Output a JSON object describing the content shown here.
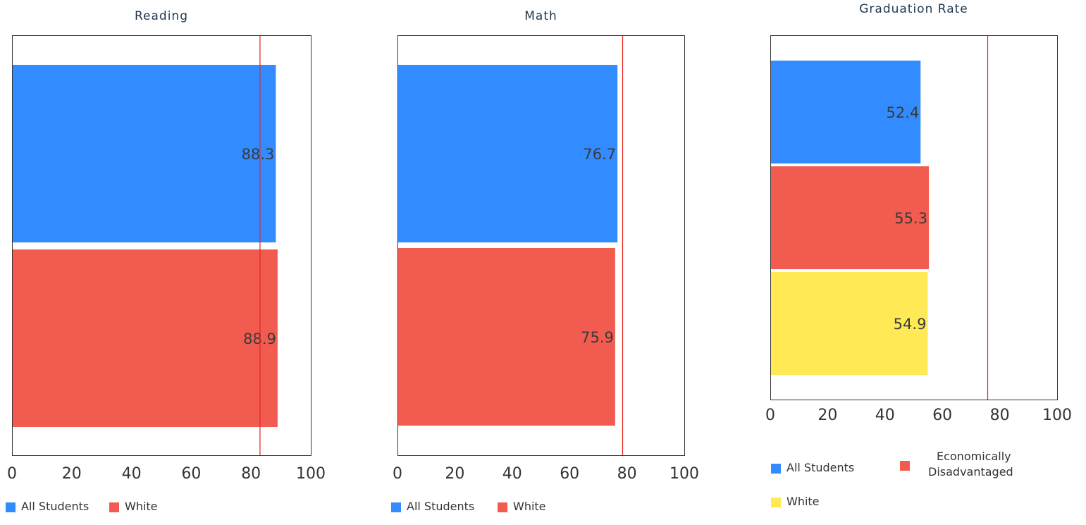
{
  "chart_data": [
    {
      "type": "bar",
      "orientation": "horizontal",
      "title": "Reading",
      "xlim": [
        0,
        100
      ],
      "xticks": [
        "0",
        "20",
        "40",
        "60",
        "80",
        "100"
      ],
      "reference_line": 83,
      "series": [
        {
          "name": "All Students",
          "value": 88.3,
          "label": "88.3",
          "color": "#338cff"
        },
        {
          "name": "White",
          "value": 88.9,
          "label": "88.9",
          "color": "#f25c50"
        }
      ],
      "legend": "bottom"
    },
    {
      "type": "bar",
      "orientation": "horizontal",
      "title": "Math",
      "xlim": [
        0,
        100
      ],
      "xticks": [
        "0",
        "20",
        "40",
        "60",
        "80",
        "100"
      ],
      "reference_line": 78.5,
      "series": [
        {
          "name": "All Students",
          "value": 76.7,
          "label": "76.7",
          "color": "#338cff"
        },
        {
          "name": "White",
          "value": 75.9,
          "label": "75.9",
          "color": "#f25c50"
        }
      ],
      "legend": "bottom"
    },
    {
      "type": "bar",
      "orientation": "horizontal",
      "title": "Graduation Rate",
      "xlim": [
        0,
        100
      ],
      "xticks": [
        "0",
        "20",
        "40",
        "60",
        "80",
        "100"
      ],
      "reference_line": 75.8,
      "series": [
        {
          "name": "All Students",
          "value": 52.4,
          "label": "52.4",
          "color": "#338cff"
        },
        {
          "name": "Economically Disadvantaged",
          "value": 55.3,
          "label": "55.3",
          "color": "#f25c50"
        },
        {
          "name": "White",
          "value": 54.9,
          "label": "54.9",
          "color": "#ffe955"
        }
      ],
      "legend": "bottom"
    }
  ],
  "reference_line_color": "#e8231c",
  "grid": false
}
